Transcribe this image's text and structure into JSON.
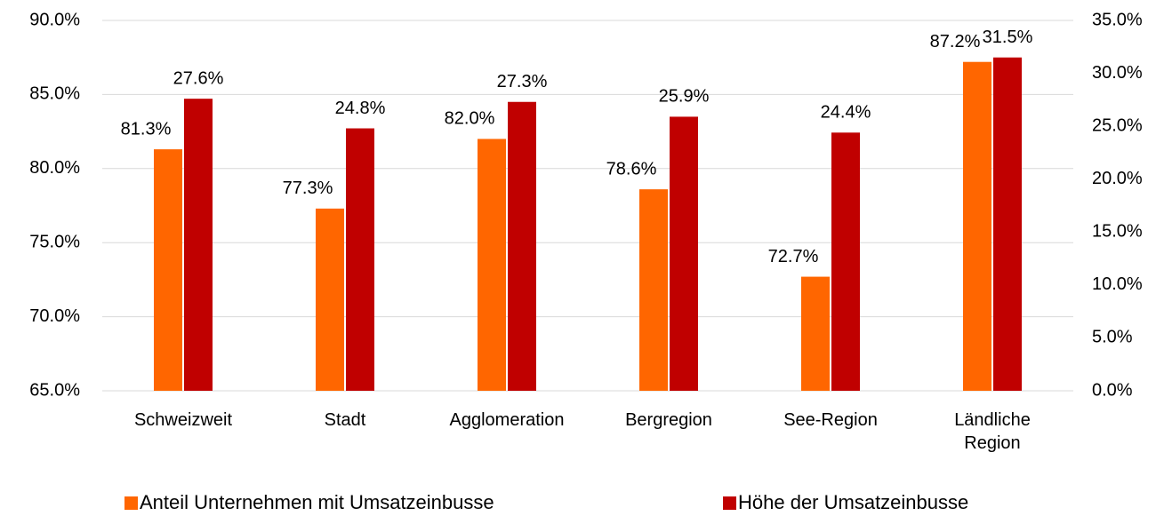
{
  "chart_data": {
    "type": "bar",
    "categories": [
      "Schweizweit",
      "Stadt",
      "Agglomeration",
      "Bergregion",
      "See-Region",
      "Ländliche Region"
    ],
    "series": [
      {
        "name": "Anteil Unternehmen mit Umsatzeinbusse",
        "color": "#ff6600",
        "axis": "y",
        "values": [
          81.3,
          77.3,
          82.0,
          78.6,
          72.7,
          87.2
        ],
        "value_labels": [
          "81.3%",
          "77.3%",
          "82.0%",
          "78.6%",
          "72.7%",
          "87.2%"
        ]
      },
      {
        "name": "Höhe der Umsatzeinbusse",
        "color": "#c00000",
        "axis": "y2",
        "values": [
          27.6,
          24.8,
          27.3,
          25.9,
          24.4,
          31.5
        ],
        "value_labels": [
          "27.6%",
          "24.8%",
          "27.3%",
          "25.9%",
          "24.4%",
          "31.5%"
        ]
      }
    ],
    "ylim": [
      65,
      90
    ],
    "yticks": [
      {
        "value": 65,
        "label": "65.0%"
      },
      {
        "value": 70,
        "label": "70.0%"
      },
      {
        "value": 75,
        "label": "75.0%"
      },
      {
        "value": 80,
        "label": "80.0%"
      },
      {
        "value": 85,
        "label": "85.0%"
      },
      {
        "value": 90,
        "label": "90.0%"
      }
    ],
    "y2lim": [
      0,
      35
    ],
    "y2ticks": [
      {
        "value": 0,
        "label": "0.0%"
      },
      {
        "value": 5,
        "label": "5.0%"
      },
      {
        "value": 10,
        "label": "10.0%"
      },
      {
        "value": 15,
        "label": "15.0%"
      },
      {
        "value": 20,
        "label": "20.0%"
      },
      {
        "value": 25,
        "label": "25.0%"
      },
      {
        "value": 30,
        "label": "30.0%"
      },
      {
        "value": 35,
        "label": "35.0%"
      }
    ],
    "grid": true,
    "legend": "bottom"
  }
}
